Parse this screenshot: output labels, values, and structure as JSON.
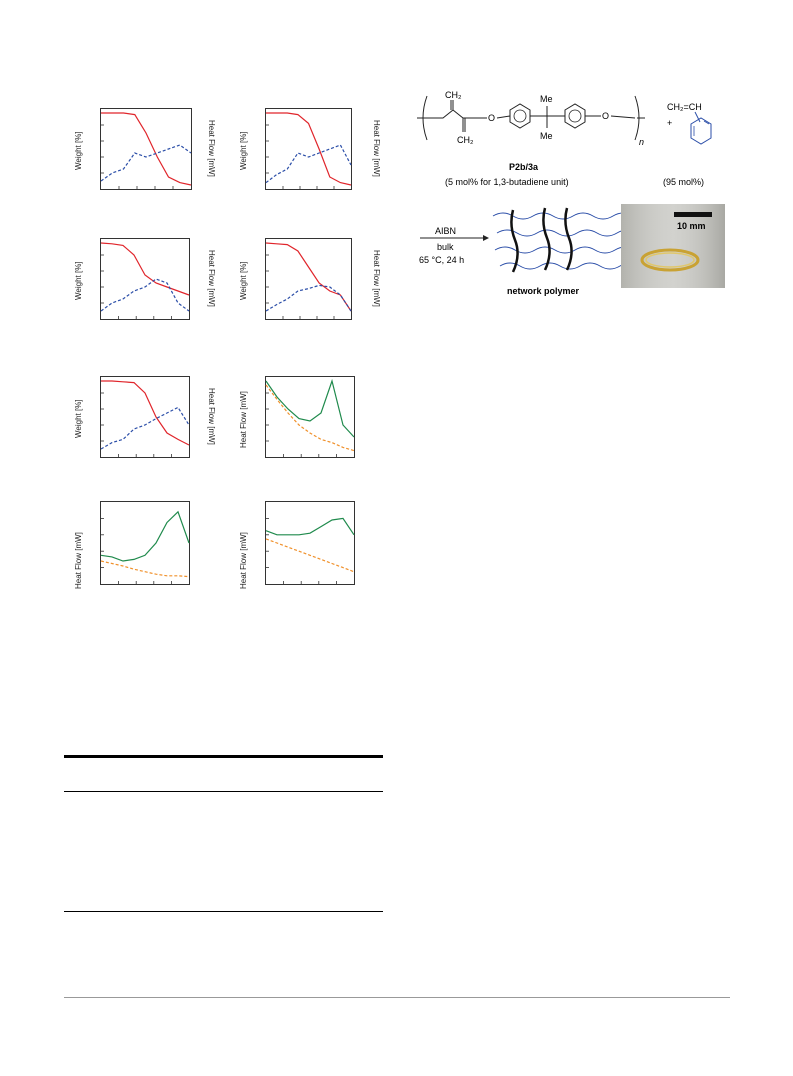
{
  "axis_labels": {
    "weight": "Weight [%]",
    "heat_flow": "Heat Flow [mW]",
    "heat_flow_alt": "Heat Flow [mW]"
  },
  "scheme": {
    "polymer_label": "P2b/3a",
    "polymer_ratio": "(5 mol% for 1,3-butadiene unit)",
    "styrene_ratio": "(95 mol%)",
    "plus": "+",
    "subscript_n": "n",
    "ch2_top": "CH₂",
    "ch2_bottom": "CH₂",
    "me_top": "Me",
    "me_bottom": "Me",
    "o_left": "O",
    "o_right": "O",
    "styrene_label": "CH₂=CH",
    "reagent": "AIBN",
    "solvent": "bulk",
    "conditions": "65 °C, 24 h",
    "network_label": "network polymer",
    "scale_bar": "10 mm"
  },
  "colors": {
    "red": "#e0252b",
    "blue": "#2b4ea8",
    "green": "#1f8a4c",
    "orange": "#f0902a"
  },
  "chart_data": [
    {
      "type": "line",
      "panel": "tga-dsc-1",
      "series": [
        {
          "color": "red",
          "values": [
            0.95,
            0.95,
            0.95,
            0.93,
            0.7,
            0.4,
            0.15,
            0.08,
            0.05
          ]
        },
        {
          "color": "blue",
          "values": [
            0.1,
            0.2,
            0.25,
            0.45,
            0.4,
            0.45,
            0.5,
            0.55,
            0.45
          ]
        }
      ]
    },
    {
      "type": "line",
      "panel": "tga-dsc-2",
      "series": [
        {
          "color": "red",
          "values": [
            0.95,
            0.95,
            0.95,
            0.93,
            0.82,
            0.5,
            0.15,
            0.08,
            0.05
          ]
        },
        {
          "color": "blue",
          "values": [
            0.08,
            0.18,
            0.25,
            0.45,
            0.4,
            0.45,
            0.5,
            0.55,
            0.3
          ]
        }
      ]
    },
    {
      "type": "line",
      "panel": "tga-dsc-3",
      "series": [
        {
          "color": "red",
          "values": [
            0.95,
            0.94,
            0.92,
            0.8,
            0.55,
            0.45,
            0.4,
            0.35,
            0.3
          ]
        },
        {
          "color": "blue",
          "values": [
            0.1,
            0.2,
            0.25,
            0.35,
            0.4,
            0.5,
            0.45,
            0.2,
            0.1
          ]
        }
      ]
    },
    {
      "type": "line",
      "panel": "tga-dsc-4",
      "series": [
        {
          "color": "red",
          "values": [
            0.95,
            0.94,
            0.93,
            0.85,
            0.65,
            0.45,
            0.35,
            0.3,
            0.1
          ]
        },
        {
          "color": "blue",
          "values": [
            0.1,
            0.18,
            0.25,
            0.35,
            0.38,
            0.42,
            0.4,
            0.3,
            0.1
          ]
        }
      ]
    },
    {
      "type": "line",
      "panel": "tga-dsc-5",
      "series": [
        {
          "color": "red",
          "values": [
            0.95,
            0.95,
            0.94,
            0.93,
            0.8,
            0.5,
            0.3,
            0.22,
            0.15
          ]
        },
        {
          "color": "blue",
          "values": [
            0.1,
            0.18,
            0.22,
            0.35,
            0.4,
            0.48,
            0.55,
            0.62,
            0.4
          ]
        }
      ]
    },
    {
      "type": "line",
      "panel": "dsc-1",
      "series": [
        {
          "color": "green",
          "values": [
            0.95,
            0.75,
            0.6,
            0.48,
            0.45,
            0.55,
            0.95,
            0.4,
            0.25
          ]
        },
        {
          "color": "orange",
          "values": [
            0.9,
            0.72,
            0.55,
            0.4,
            0.3,
            0.22,
            0.18,
            0.12,
            0.08
          ]
        }
      ]
    },
    {
      "type": "line",
      "panel": "dsc-2",
      "series": [
        {
          "color": "green",
          "values": [
            0.35,
            0.33,
            0.28,
            0.3,
            0.35,
            0.5,
            0.75,
            0.88,
            0.5
          ]
        },
        {
          "color": "orange",
          "values": [
            0.28,
            0.25,
            0.22,
            0.18,
            0.15,
            0.12,
            0.1,
            0.1,
            0.09
          ]
        }
      ]
    },
    {
      "type": "line",
      "panel": "dsc-3",
      "series": [
        {
          "color": "green",
          "values": [
            0.65,
            0.6,
            0.6,
            0.6,
            0.62,
            0.7,
            0.78,
            0.8,
            0.6
          ]
        },
        {
          "color": "orange",
          "values": [
            0.55,
            0.5,
            0.45,
            0.4,
            0.35,
            0.3,
            0.25,
            0.2,
            0.15
          ]
        }
      ]
    }
  ]
}
